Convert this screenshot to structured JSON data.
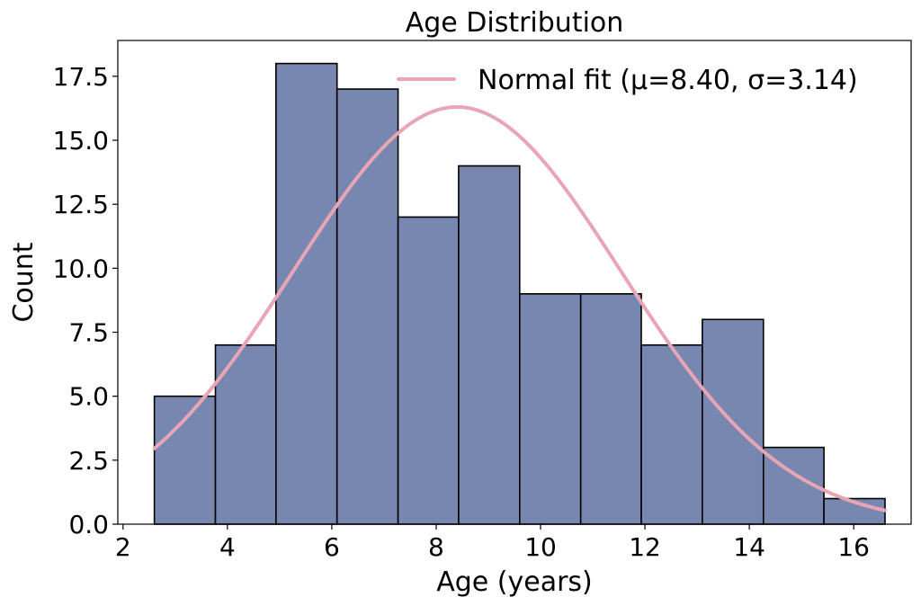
{
  "chart_data": {
    "type": "bar",
    "title": "Age Distribution",
    "xlabel": "Age (years)",
    "ylabel": "Count",
    "xlim": [
      1.9,
      17.1
    ],
    "ylim": [
      0,
      18.9
    ],
    "xticks": [
      2,
      4,
      6,
      8,
      10,
      12,
      14,
      16
    ],
    "xtick_labels": [
      "2",
      "4",
      "6",
      "8",
      "10",
      "12",
      "14",
      "16"
    ],
    "yticks": [
      0,
      2.5,
      5,
      7.5,
      10,
      12.5,
      15,
      17.5
    ],
    "ytick_labels": [
      "0.0",
      "2.5",
      "5.0",
      "7.5",
      "10.0",
      "12.5",
      "15.0",
      "17.5"
    ],
    "grid": false,
    "legend_position": "top-right",
    "histogram": {
      "bin_edges": [
        2.6,
        3.77,
        4.93,
        6.1,
        7.27,
        8.43,
        9.6,
        10.77,
        11.93,
        13.1,
        14.27,
        15.43,
        16.6
      ],
      "counts": [
        5,
        7,
        18,
        17,
        12,
        14,
        9,
        9,
        7,
        8,
        3,
        1
      ],
      "fill_color": "#7787b0",
      "edge_color": "#000000",
      "name": ""
    },
    "fit_curve": {
      "name": "Normal fit (μ=8.40, σ=3.14)",
      "kind": "normal",
      "mu": 8.4,
      "sigma": 3.14,
      "x_range": [
        2.6,
        16.6
      ],
      "peak_value": 16.3,
      "color": "#e8a5b5"
    }
  }
}
